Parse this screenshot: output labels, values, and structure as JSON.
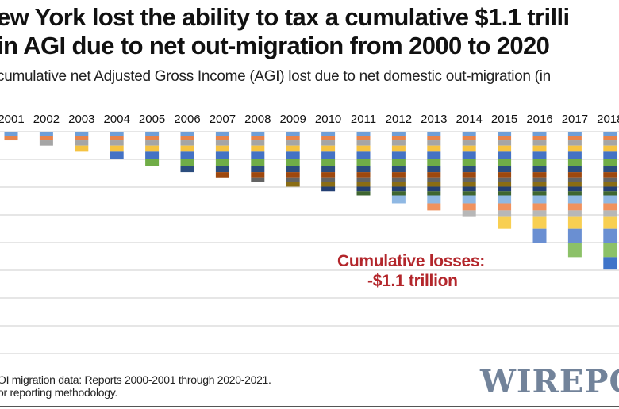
{
  "title_lines": [
    "ew York lost the ability to tax a cumulative $1.1 trilli",
    "in AGI due to net out-migration from 2000 to 2020"
  ],
  "subtitle": "cumulative net Adjusted Gross Income (AGI) lost due to net domestic out-migration (in",
  "annotation": {
    "line1": "Cumulative losses:",
    "line2": "-$1.1 trillion",
    "color": "#b3262b"
  },
  "footer": [
    "OI migration data: Reports 2000-2001 through 2020-2021.",
    "or reporting methodology."
  ],
  "watermark": "WIREPO",
  "chart_data": {
    "type": "bar",
    "stacked": true,
    "categories": [
      "2001",
      "2002",
      "2003",
      "2004",
      "2005",
      "2006",
      "2007",
      "2008",
      "2009",
      "2010",
      "2011",
      "2012",
      "2013",
      "2014",
      "2015",
      "2016",
      "2017",
      "2018"
    ],
    "segment_years": [
      "2000",
      "2001",
      "2002",
      "2003",
      "2004",
      "2005",
      "2006",
      "2007",
      "2008",
      "2009",
      "2010",
      "2011",
      "2012",
      "2013",
      "2014",
      "2015",
      "2016",
      "2017",
      "2018"
    ],
    "annual_loss_billions": [
      29,
      34,
      38,
      44,
      50,
      53,
      44,
      38,
      33,
      34,
      33,
      30,
      57,
      51,
      47,
      86,
      103,
      101,
      90
    ],
    "segment_colors": [
      "#6f9fd8",
      "#e8844a",
      "#a5a5a5",
      "#f5c342",
      "#4472c4",
      "#70ad47",
      "#2b4d7e",
      "#9e480e",
      "#636363",
      "#8a6d14",
      "#233f73",
      "#3f6630",
      "#8fb8e3",
      "#f0925e",
      "#b7b7b7",
      "#f8cf52",
      "#6a8fd2",
      "#8cc168",
      "#3f74c9"
    ],
    "ylim": [
      -1600,
      0
    ],
    "grid": true,
    "gridline_step_billions": 200,
    "title": "",
    "xlabel": "",
    "ylabel": ""
  }
}
